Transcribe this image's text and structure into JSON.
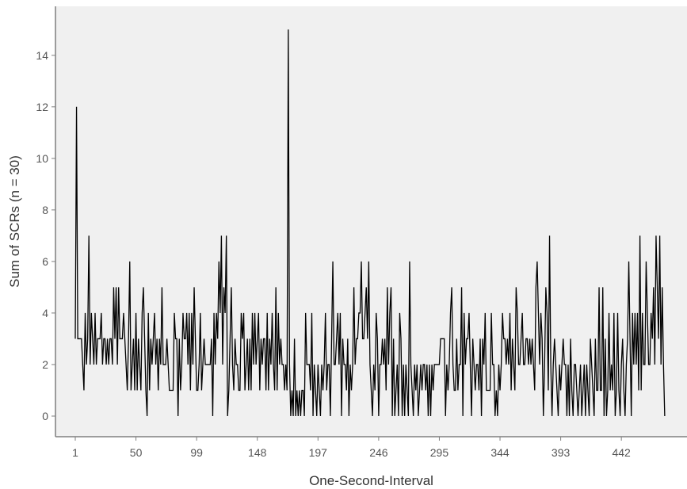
{
  "chart_data": {
    "type": "line",
    "title": "",
    "xlabel": "One-Second-Interval",
    "ylabel": "Sum of SCRs (n = 30)",
    "xlim": [
      -15,
      495
    ],
    "ylim": [
      -0.8,
      15.9
    ],
    "x_ticks": [
      1,
      50,
      99,
      148,
      197,
      246,
      295,
      344,
      393,
      442
    ],
    "y_ticks": [
      0,
      2,
      4,
      6,
      8,
      10,
      12,
      14
    ],
    "grid": false,
    "legend": "none",
    "colors": {
      "plot_bg": "#f0f0f0",
      "line": "#000000",
      "frame": "#7f7f7f"
    },
    "series": [
      {
        "values": [
          3,
          12,
          3,
          3,
          3,
          3,
          2,
          1,
          4,
          2,
          3,
          7,
          2,
          4,
          3,
          2,
          4,
          2,
          3,
          3,
          3,
          4,
          2,
          3,
          3,
          2,
          3,
          2,
          3,
          3,
          2,
          5,
          3,
          5,
          2,
          5,
          3,
          3,
          3,
          4,
          3,
          2,
          1,
          3,
          6,
          1,
          2,
          3,
          1,
          4,
          1,
          3,
          2,
          1,
          4,
          5,
          3,
          1,
          0,
          4,
          1,
          3,
          2,
          3,
          4,
          2,
          3,
          1,
          3,
          2,
          5,
          2,
          2,
          2,
          3,
          2,
          1,
          1,
          1,
          1,
          4,
          3,
          3,
          0,
          3,
          1,
          2,
          4,
          3,
          3,
          4,
          2,
          4,
          1,
          4,
          2,
          5,
          3,
          1,
          1,
          2,
          4,
          1,
          2,
          3,
          2,
          2,
          2,
          2,
          2,
          3,
          0,
          4,
          2,
          4,
          3,
          6,
          4,
          7,
          2,
          5,
          4,
          7,
          0,
          1,
          3,
          5,
          2,
          1,
          3,
          2,
          2,
          1,
          1,
          4,
          3,
          4,
          1,
          2,
          3,
          1,
          3,
          1,
          4,
          2,
          4,
          2,
          3,
          4,
          1,
          3,
          2,
          3,
          3,
          1,
          4,
          1,
          3,
          2,
          4,
          2,
          1,
          5,
          1,
          4,
          2,
          3,
          2,
          2,
          1,
          2,
          1,
          15,
          2,
          0,
          1,
          0,
          3,
          0,
          1,
          0,
          1,
          0,
          1,
          1,
          0,
          4,
          2,
          2,
          2,
          1,
          4,
          0,
          2,
          1,
          0,
          2,
          1,
          0,
          2,
          1,
          2,
          4,
          1,
          2,
          2,
          0,
          3,
          6,
          2,
          2,
          3,
          4,
          2,
          4,
          0,
          3,
          2,
          2,
          1,
          3,
          0,
          2,
          1,
          2,
          5,
          2,
          3,
          3,
          4,
          4,
          6,
          3,
          3,
          4,
          5,
          3,
          6,
          2,
          1,
          0,
          2,
          1,
          4,
          3,
          0,
          2,
          2,
          3,
          2,
          3,
          1,
          5,
          2,
          4,
          5,
          0,
          3,
          0,
          1,
          2,
          0,
          4,
          3,
          0,
          2,
          0,
          2,
          1,
          0,
          6,
          2,
          1,
          0,
          2,
          1,
          2,
          0,
          1,
          2,
          1,
          2,
          2,
          1,
          2,
          0,
          2,
          0,
          2,
          1,
          2,
          2,
          2,
          2,
          2,
          3,
          3,
          3,
          3,
          0,
          2,
          1,
          2,
          4,
          5,
          2,
          1,
          1,
          3,
          1,
          2,
          2,
          5,
          0,
          4,
          2,
          3,
          3,
          4,
          2,
          0,
          3,
          2,
          1,
          2,
          2,
          1,
          3,
          0,
          3,
          2,
          4,
          1,
          1,
          1,
          1,
          4,
          2,
          2,
          0,
          1,
          0,
          2,
          1,
          2,
          4,
          3,
          3,
          2,
          3,
          2,
          4,
          1,
          3,
          2,
          1,
          5,
          4,
          2,
          2,
          3,
          4,
          2,
          2,
          3,
          3,
          2,
          3,
          2,
          3,
          2,
          1,
          5,
          6,
          4,
          2,
          4,
          3,
          0,
          2,
          5,
          4,
          1,
          7,
          2,
          0,
          2,
          3,
          2,
          1,
          0,
          2,
          1,
          2,
          3,
          2,
          2,
          0,
          2,
          0,
          3,
          1,
          0,
          2,
          2,
          1,
          0,
          1,
          2,
          0,
          1,
          2,
          0,
          2,
          1,
          0,
          3,
          2,
          1,
          0,
          3,
          1,
          1,
          5,
          1,
          1,
          5,
          0,
          3,
          0,
          1,
          4,
          1,
          2,
          1,
          4,
          0,
          1,
          4,
          1,
          0,
          2,
          3,
          1,
          0,
          2,
          3,
          6,
          3,
          0,
          4,
          2,
          4,
          2,
          4,
          1,
          7,
          1,
          4,
          2,
          2,
          6,
          4,
          2,
          2,
          4,
          3,
          5,
          2,
          7,
          5,
          3,
          7,
          2,
          5,
          2,
          0
        ]
      }
    ]
  }
}
